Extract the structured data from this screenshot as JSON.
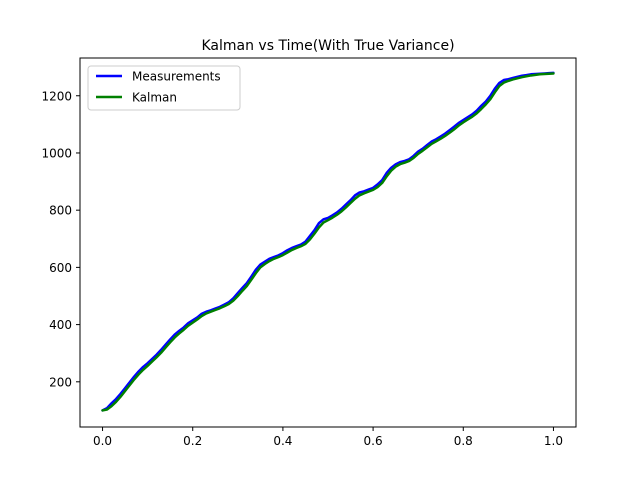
{
  "chart_data": {
    "type": "line",
    "title": "Kalman vs Time(With True Variance)",
    "xlabel": "",
    "ylabel": "",
    "xlim": [
      -0.05,
      1.05
    ],
    "ylim": [
      42,
      1332
    ],
    "xticks": [
      0.0,
      0.2,
      0.4,
      0.6,
      0.8,
      1.0
    ],
    "xtick_labels": [
      "0.0",
      "0.2",
      "0.4",
      "0.6",
      "0.8",
      "1.0"
    ],
    "yticks": [
      200,
      400,
      600,
      800,
      1000,
      1200
    ],
    "ytick_labels": [
      "200",
      "400",
      "600",
      "800",
      "1000",
      "1200"
    ],
    "grid": false,
    "legend": {
      "position": "top-left"
    },
    "series": [
      {
        "name": "Measurements",
        "color": "#0000ff",
        "x": [
          0.0,
          0.01,
          0.02,
          0.03,
          0.04,
          0.05,
          0.06,
          0.07,
          0.08,
          0.09,
          0.1,
          0.11,
          0.12,
          0.13,
          0.14,
          0.15,
          0.16,
          0.17,
          0.18,
          0.19,
          0.2,
          0.21,
          0.22,
          0.23,
          0.24,
          0.25,
          0.26,
          0.27,
          0.28,
          0.29,
          0.3,
          0.31,
          0.32,
          0.33,
          0.34,
          0.35,
          0.36,
          0.37,
          0.38,
          0.39,
          0.4,
          0.41,
          0.42,
          0.43,
          0.44,
          0.45,
          0.46,
          0.47,
          0.48,
          0.49,
          0.5,
          0.51,
          0.52,
          0.53,
          0.54,
          0.55,
          0.56,
          0.57,
          0.58,
          0.59,
          0.6,
          0.61,
          0.62,
          0.63,
          0.64,
          0.65,
          0.66,
          0.67,
          0.68,
          0.69,
          0.7,
          0.71,
          0.72,
          0.73,
          0.74,
          0.75,
          0.76,
          0.77,
          0.78,
          0.79,
          0.8,
          0.81,
          0.82,
          0.83,
          0.84,
          0.85,
          0.86,
          0.87,
          0.88,
          0.89,
          0.9,
          0.91,
          0.92,
          0.93,
          0.94,
          0.95,
          0.96,
          0.97,
          0.98,
          0.99,
          1.0
        ],
        "y": [
          100,
          108,
          125,
          140,
          158,
          178,
          198,
          218,
          236,
          252,
          265,
          280,
          295,
          312,
          330,
          348,
          365,
          378,
          390,
          405,
          415,
          425,
          438,
          445,
          450,
          456,
          462,
          470,
          478,
          492,
          510,
          528,
          545,
          568,
          592,
          610,
          620,
          630,
          636,
          642,
          650,
          660,
          668,
          674,
          680,
          690,
          710,
          730,
          755,
          768,
          773,
          782,
          792,
          805,
          820,
          835,
          852,
          862,
          866,
          872,
          878,
          890,
          905,
          930,
          948,
          960,
          968,
          972,
          978,
          990,
          1005,
          1015,
          1028,
          1040,
          1048,
          1058,
          1068,
          1080,
          1092,
          1105,
          1115,
          1125,
          1135,
          1148,
          1165,
          1180,
          1200,
          1225,
          1245,
          1255,
          1258,
          1262,
          1266,
          1270,
          1272,
          1275,
          1276,
          1277,
          1278,
          1279,
          1280
        ]
      },
      {
        "name": "Kalman",
        "color": "#008000",
        "x": [
          0.0,
          0.01,
          0.02,
          0.03,
          0.04,
          0.05,
          0.06,
          0.07,
          0.08,
          0.09,
          0.1,
          0.11,
          0.12,
          0.13,
          0.14,
          0.15,
          0.16,
          0.17,
          0.18,
          0.19,
          0.2,
          0.21,
          0.22,
          0.23,
          0.24,
          0.25,
          0.26,
          0.27,
          0.28,
          0.29,
          0.3,
          0.31,
          0.32,
          0.33,
          0.34,
          0.35,
          0.36,
          0.37,
          0.38,
          0.39,
          0.4,
          0.41,
          0.42,
          0.43,
          0.44,
          0.45,
          0.46,
          0.47,
          0.48,
          0.49,
          0.5,
          0.51,
          0.52,
          0.53,
          0.54,
          0.55,
          0.56,
          0.57,
          0.58,
          0.59,
          0.6,
          0.61,
          0.62,
          0.63,
          0.64,
          0.65,
          0.66,
          0.67,
          0.68,
          0.69,
          0.7,
          0.71,
          0.72,
          0.73,
          0.74,
          0.75,
          0.76,
          0.77,
          0.78,
          0.79,
          0.8,
          0.81,
          0.82,
          0.83,
          0.84,
          0.85,
          0.86,
          0.87,
          0.88,
          0.89,
          0.9,
          0.91,
          0.92,
          0.93,
          0.94,
          0.95,
          0.96,
          0.97,
          0.98,
          0.99,
          1.0
        ],
        "y": [
          100,
          103,
          115,
          130,
          148,
          168,
          188,
          208,
          226,
          242,
          256,
          271,
          286,
          302,
          320,
          338,
          355,
          369,
          382,
          396,
          407,
          418,
          430,
          439,
          445,
          451,
          457,
          464,
          472,
          484,
          500,
          518,
          535,
          557,
          580,
          600,
          612,
          622,
          630,
          636,
          643,
          652,
          661,
          668,
          674,
          682,
          698,
          718,
          740,
          757,
          765,
          774,
          784,
          796,
          810,
          825,
          840,
          852,
          859,
          865,
          871,
          881,
          895,
          918,
          938,
          952,
          961,
          966,
          972,
          983,
          997,
          1008,
          1020,
          1032,
          1041,
          1050,
          1060,
          1071,
          1083,
          1096,
          1107,
          1117,
          1127,
          1139,
          1154,
          1170,
          1188,
          1212,
          1234,
          1246,
          1252,
          1257,
          1261,
          1265,
          1268,
          1271,
          1273,
          1275,
          1276,
          1277,
          1278
        ]
      }
    ]
  }
}
